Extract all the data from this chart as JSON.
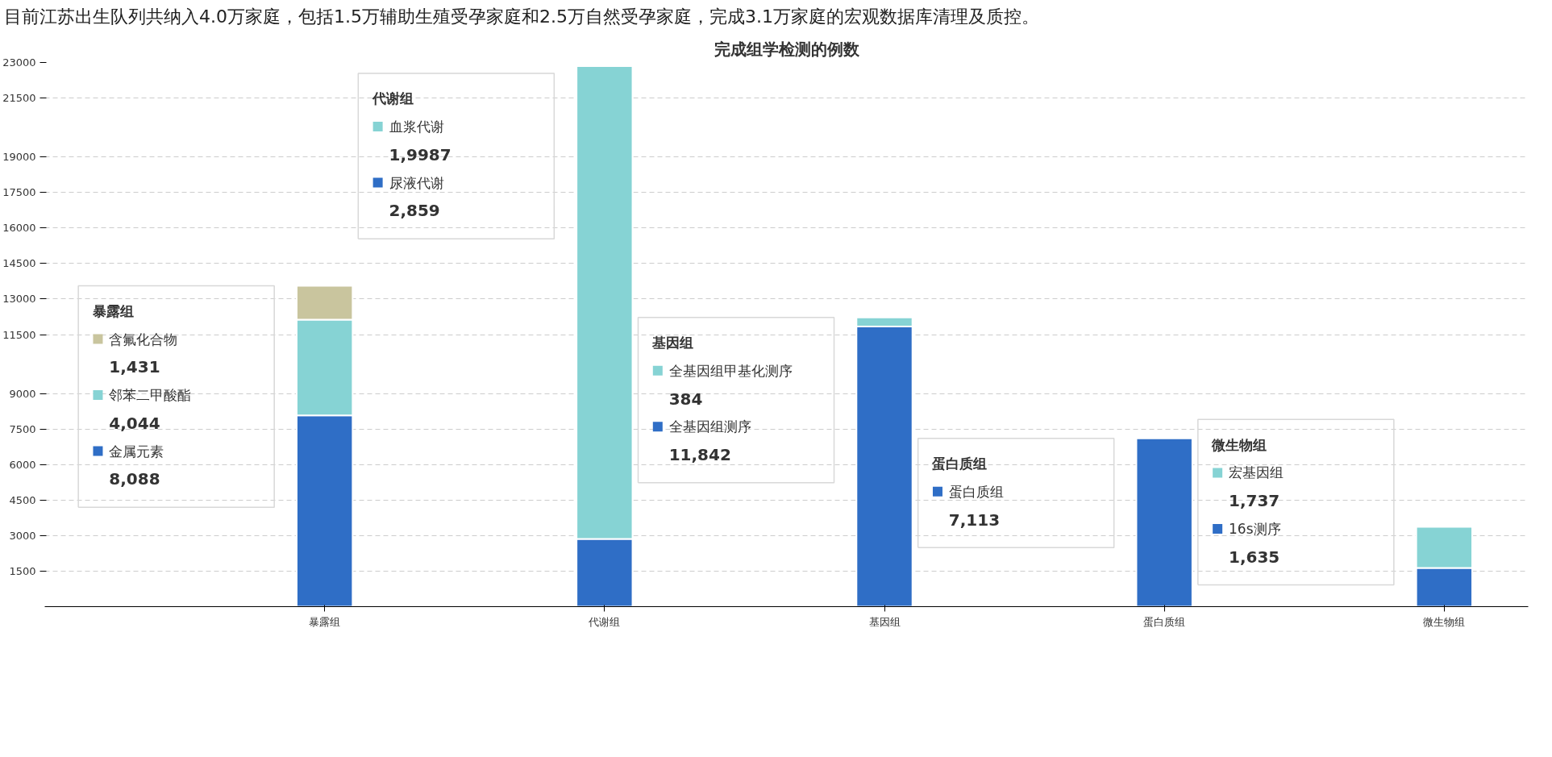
{
  "chart_data": {
    "type": "bar",
    "title": "完成组学检测的例数",
    "subtitle": "目前江苏出生队列共纳入4.0万家庭，包括1.5万辅助生殖受孕家庭和2.5万自然受孕家庭，完成3.1万家庭的宏观数据库清理及质控。",
    "categories": [
      "暴露组",
      "代谢组",
      "基因组",
      "蛋白质组",
      "微生物组"
    ],
    "stacked": true,
    "ylim": [
      0,
      23000
    ],
    "yticks": [
      1500,
      3000,
      4500,
      6000,
      7500,
      9000,
      11500,
      13000,
      14500,
      16000,
      17500,
      19000,
      21500,
      23000
    ],
    "grid": "y",
    "legend": "left",
    "series": [
      {
        "name": "金属元素\n8,088",
        "color": "#2f6ec6",
        "values": [
          8088,
          null,
          null,
          null,
          null
        ]
      },
      {
        "name": "邻苯二甲酸酯\n4,044",
        "color": "#86d3d4",
        "values": [
          4044,
          null,
          null,
          null,
          null
        ]
      },
      {
        "name": "含氟化合物\n1,431",
        "color": "#c9c59e",
        "values": [
          1431,
          null,
          null,
          null,
          null
        ]
      },
      {
        "name": "尿液代谢\n2,859",
        "color": "#2f6ec6",
        "values": [
          null,
          2859,
          null,
          null,
          null
        ]
      },
      {
        "name": "血浆代谢\n1,9987",
        "color": "#86d3d4",
        "values": [
          null,
          19987,
          null,
          null,
          null
        ]
      },
      {
        "name": "全基因组测序\n11,842",
        "color": "#2f6ec6",
        "values": [
          null,
          null,
          11842,
          null,
          null
        ]
      },
      {
        "name": "全基因组甲基化测序\n384",
        "color": "#86d3d4",
        "values": [
          null,
          null,
          384,
          null,
          null
        ]
      },
      {
        "name": "蛋白质组\n7,113",
        "color": "#2f6ec6",
        "values": [
          null,
          null,
          null,
          7113,
          null
        ]
      },
      {
        "name": "16s测序\n1,635",
        "color": "#2f6ec6",
        "values": [
          null,
          null,
          null,
          null,
          1635
        ]
      },
      {
        "name": "宏基因组\n1,737",
        "color": "#86d3d4",
        "values": [
          null,
          null,
          null,
          null,
          1737
        ]
      }
    ],
    "annotations": [
      "暴露组",
      "代谢组",
      "基因组",
      "蛋白质组",
      "微生物组"
    ]
  }
}
